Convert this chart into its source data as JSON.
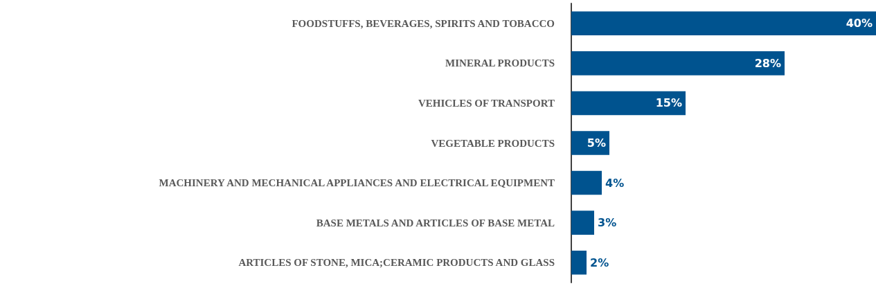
{
  "chart_data": {
    "type": "bar",
    "orientation": "horizontal",
    "categories": [
      "FOODSTUFFS, BEVERAGES, SPIRITS AND TOBACCO",
      "MINERAL PRODUCTS",
      "VEHICLES OF TRANSPORT",
      "VEGETABLE PRODUCTS",
      "MACHINERY AND MECHANICAL APPLIANCES AND ELECTRICAL EQUIPMENT",
      "BASE METALS AND ARTICLES OF BASE METAL",
      "ARTICLES OF STONE, MICA;CERAMIC PRODUCTS AND GLASS"
    ],
    "values": [
      40,
      28,
      15,
      5,
      4,
      3,
      2
    ],
    "value_labels": [
      "40%",
      "28%",
      "15%",
      "5%",
      "4%",
      "3%",
      "2%"
    ],
    "color": "#00538f",
    "tick_labels": "y"
  }
}
